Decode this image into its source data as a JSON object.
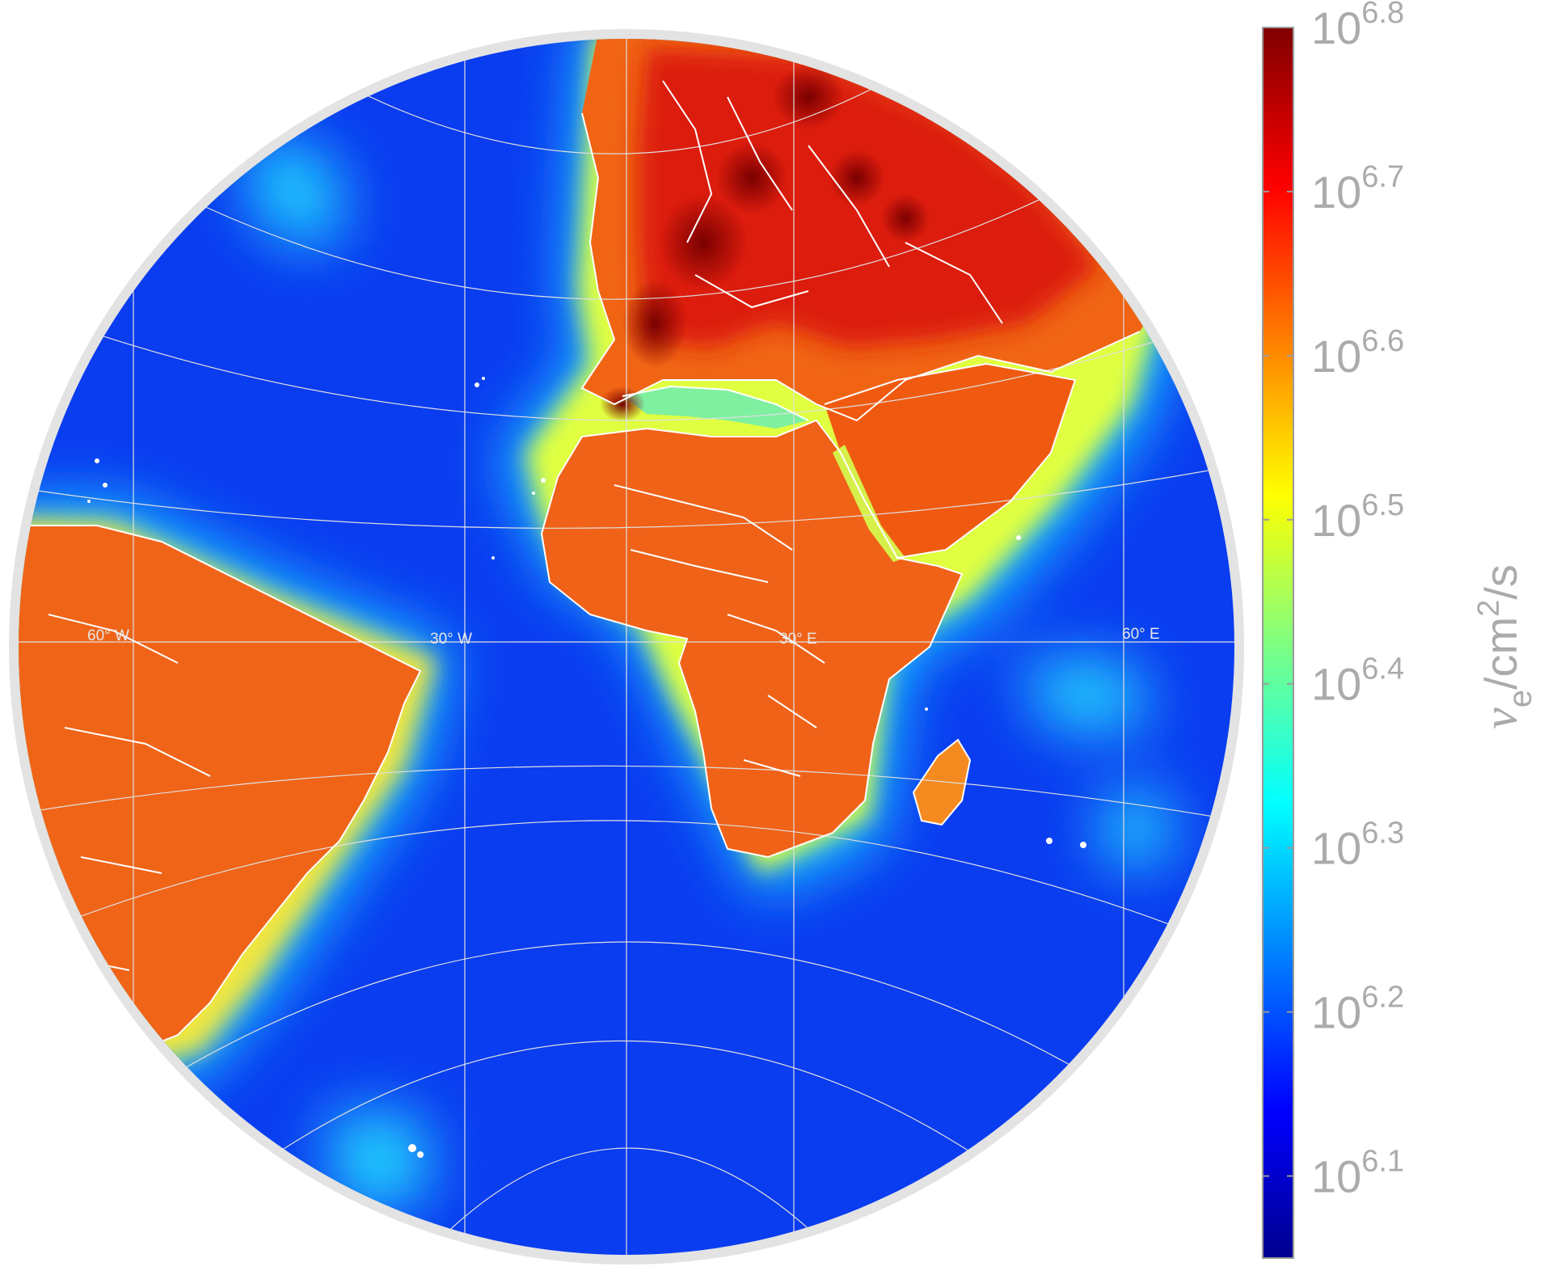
{
  "map": {
    "projection": "orthographic",
    "center": {
      "lon": 0,
      "lat": 0
    },
    "lon_labels": [
      "60° W",
      "30° W",
      "30° E",
      "60° E"
    ],
    "graticule_color": "#e0e0e0",
    "coastline_color": "#ffffff",
    "ocean_value": 6.15,
    "land_value": 6.62,
    "hotspot_value": 6.78
  },
  "colorbar": {
    "colormap": "jet",
    "scale": "log10",
    "range": [
      6.05,
      6.8
    ],
    "ticks": [
      {
        "value": 6.1,
        "base": "10",
        "exponent": "6.1"
      },
      {
        "value": 6.2,
        "base": "10",
        "exponent": "6.2"
      },
      {
        "value": 6.3,
        "base": "10",
        "exponent": "6.3"
      },
      {
        "value": 6.4,
        "base": "10",
        "exponent": "6.4"
      },
      {
        "value": 6.5,
        "base": "10",
        "exponent": "6.5"
      },
      {
        "value": 6.6,
        "base": "10",
        "exponent": "6.6"
      },
      {
        "value": 6.7,
        "base": "10",
        "exponent": "6.7"
      },
      {
        "value": 6.8,
        "base": "10",
        "exponent": "6.8"
      }
    ],
    "label": {
      "symbol": "ν",
      "subscript": "e",
      "unit": "/cm",
      "unit_exp": "2",
      "unit_tail": "/s"
    }
  }
}
